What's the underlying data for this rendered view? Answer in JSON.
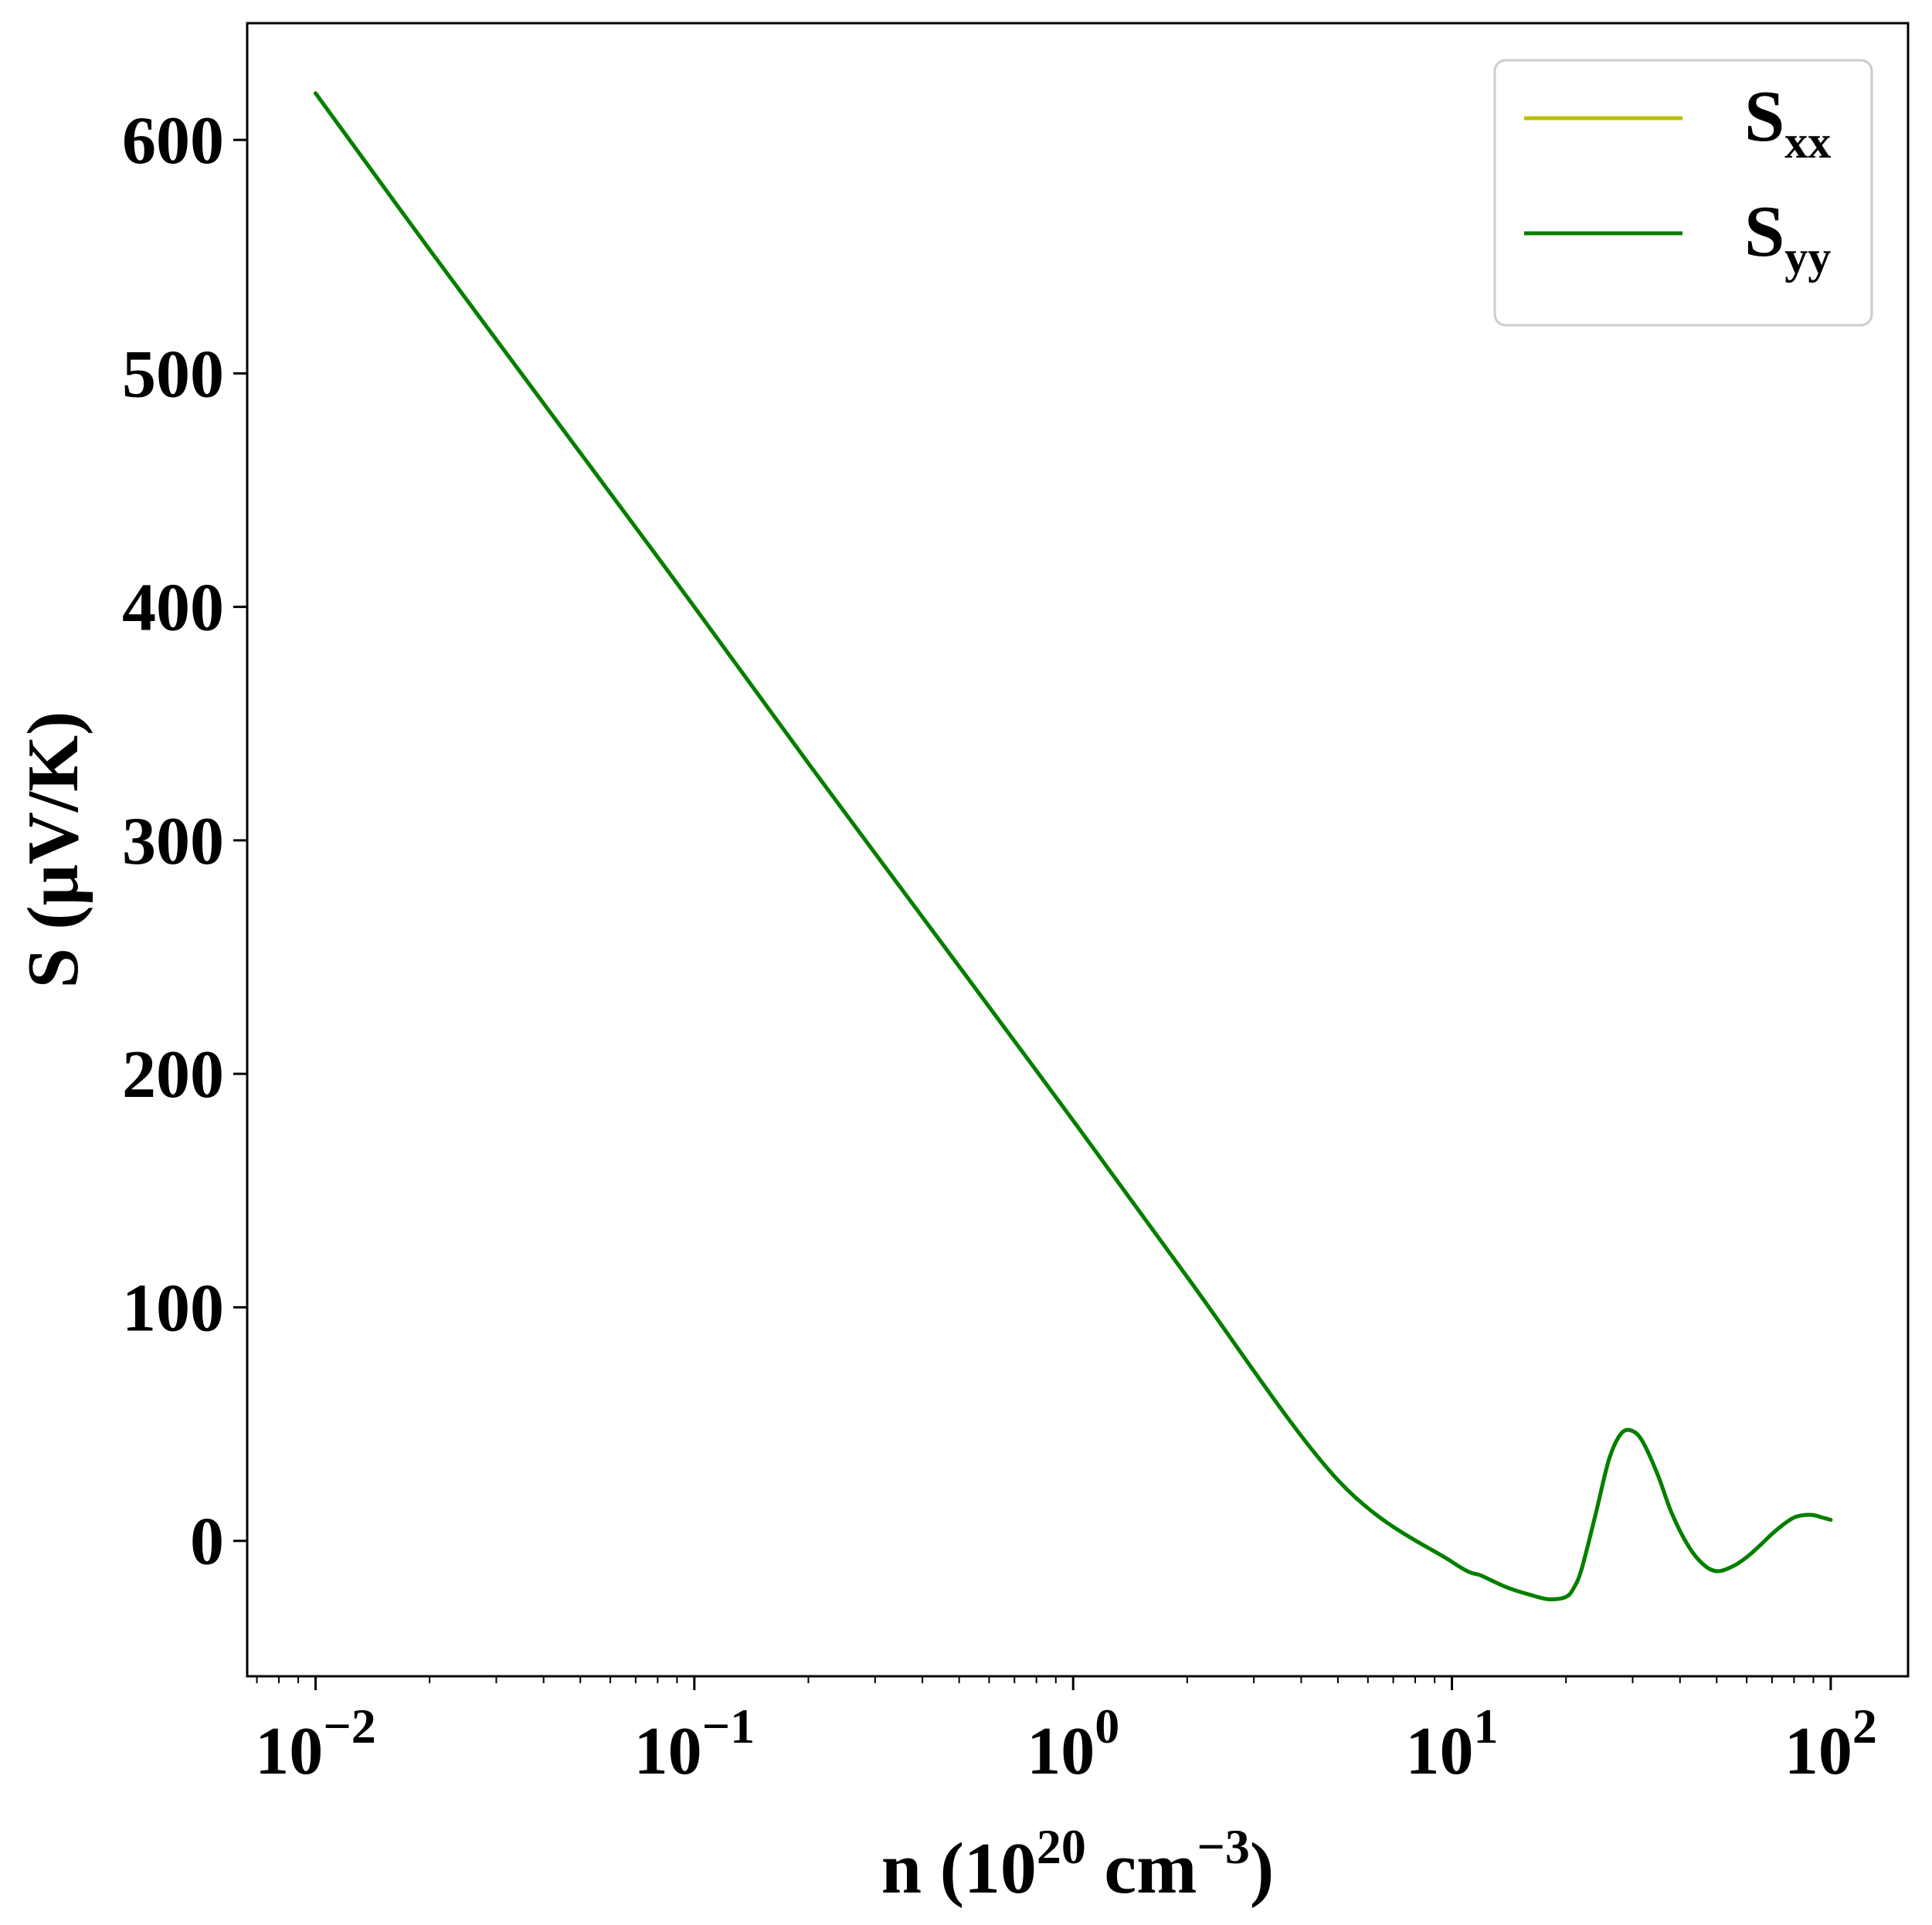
{
  "chart_data": {
    "type": "line",
    "xscale": "log",
    "xlim": [
      0.0066,
      160
    ],
    "ylim": [
      -58,
      650
    ],
    "x_ticks": [
      {
        "value": 0.01,
        "base": "10",
        "exp": "−2"
      },
      {
        "value": 0.1,
        "base": "10",
        "exp": "−1"
      },
      {
        "value": 1,
        "base": "10",
        "exp": "0"
      },
      {
        "value": 10,
        "base": "10",
        "exp": "1"
      },
      {
        "value": 100,
        "base": "10",
        "exp": "2"
      }
    ],
    "y_ticks": [
      0,
      100,
      200,
      300,
      400,
      500,
      600
    ],
    "xlabel": {
      "pre": "n (10",
      "sup1": "20",
      "mid": " cm",
      "sup2": "−3",
      "post": ")"
    },
    "ylabel": "S (μV/K)",
    "grid": false,
    "legend_position": "upper right",
    "series": [
      {
        "name": "S",
        "subscript": "xx",
        "color": "#bfbf00",
        "x": [
          0.01,
          0.02,
          0.05,
          0.1,
          0.2,
          0.5,
          1,
          2,
          5,
          10,
          12,
          14,
          16,
          18,
          20,
          21,
          22,
          24,
          26,
          28,
          30,
          32,
          35,
          38,
          42,
          46,
          50,
          55,
          60,
          65,
          70,
          75,
          80,
          85,
          90,
          95,
          100
        ],
        "y": [
          620,
          553,
          466,
          400,
          333,
          246,
          180,
          113,
          26,
          -9,
          -15,
          -20,
          -23,
          -25,
          -24,
          -20,
          -12,
          12,
          35,
          46,
          47,
          42,
          28,
          12,
          -2,
          -10,
          -13,
          -11,
          -7,
          -2,
          3,
          7,
          10,
          11,
          11,
          10,
          9
        ]
      },
      {
        "name": "S",
        "subscript": "yy",
        "color": "#007f00",
        "x": [
          0.01,
          0.02,
          0.05,
          0.1,
          0.2,
          0.5,
          1,
          2,
          5,
          10,
          12,
          14,
          16,
          18,
          20,
          21,
          22,
          24,
          26,
          28,
          30,
          32,
          35,
          38,
          42,
          46,
          50,
          55,
          60,
          65,
          70,
          75,
          80,
          85,
          90,
          95,
          100
        ],
        "y": [
          620,
          553,
          466,
          400,
          333,
          246,
          180,
          113,
          26,
          -9,
          -15,
          -20,
          -23,
          -25,
          -24,
          -20,
          -12,
          12,
          35,
          46,
          47,
          42,
          28,
          12,
          -2,
          -10,
          -13,
          -11,
          -7,
          -2,
          3,
          7,
          10,
          11,
          11,
          10,
          9
        ]
      }
    ]
  }
}
